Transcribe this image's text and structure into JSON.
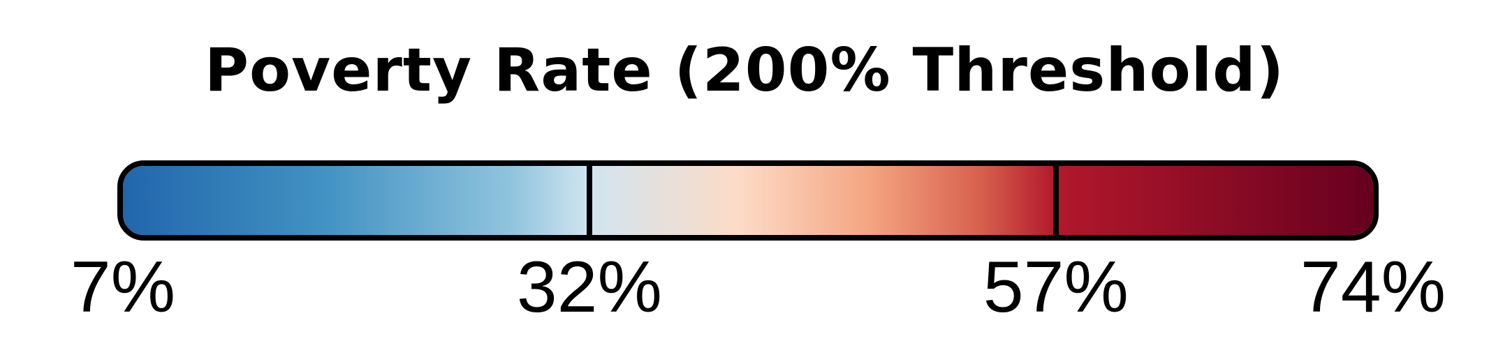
{
  "chart_data": {
    "type": "colorbar",
    "title": "Poverty Rate (200% Threshold)",
    "range": [
      7,
      74
    ],
    "ticks": [
      7,
      32,
      57,
      74
    ],
    "tick_labels": [
      "7%",
      "32%",
      "57%",
      "74%"
    ],
    "colormap": {
      "name": "RdBu_r",
      "stops": [
        {
          "value": 7,
          "color": "#2166ac"
        },
        {
          "value": 18,
          "color": "#4393c3"
        },
        {
          "value": 28,
          "color": "#92c5de"
        },
        {
          "value": 32,
          "color": "#d1e5f0"
        },
        {
          "value": 40,
          "color": "#fddbc7"
        },
        {
          "value": 47,
          "color": "#f4a582"
        },
        {
          "value": 53,
          "color": "#d6604d"
        },
        {
          "value": 57,
          "color": "#b2182b"
        },
        {
          "value": 74,
          "color": "#67001f"
        }
      ]
    },
    "segment_dividers": [
      32,
      57
    ],
    "orientation": "horizontal"
  }
}
